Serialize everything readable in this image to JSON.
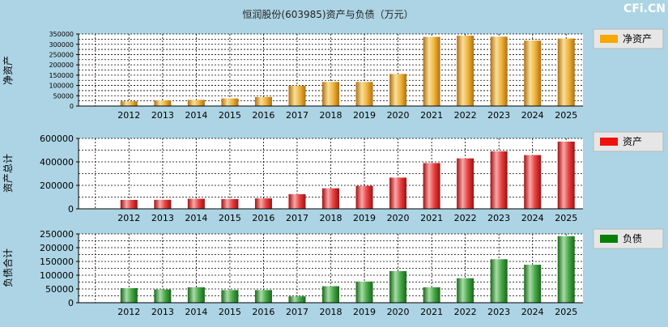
{
  "title": "恒润股份(603985)资产与负债（万元）",
  "watermark": "CFi.CN",
  "chart_data": [
    {
      "type": "bar",
      "ylabel": "净资产",
      "legend": "净资产",
      "legend_position": "top-right",
      "categories": [
        "2012",
        "2013",
        "2014",
        "2015",
        "2016",
        "2017",
        "2018",
        "2019",
        "2020",
        "2021",
        "2022",
        "2023",
        "2024",
        "2025"
      ],
      "values": [
        23000,
        28000,
        30000,
        37000,
        44000,
        99000,
        117000,
        117000,
        156000,
        336000,
        342000,
        337000,
        318000,
        328000
      ],
      "ylim": [
        0,
        350000
      ],
      "yticks": [
        0,
        50000,
        100000,
        150000,
        200000,
        250000,
        300000,
        350000
      ],
      "yticks_minor": [
        0,
        25000,
        50000,
        75000,
        100000,
        125000,
        150000,
        175000,
        200000,
        225000,
        250000,
        275000,
        300000,
        325000,
        350000
      ],
      "color_light": "#f8df9a",
      "color_mid": "#f0b43c",
      "color_dark": "#b07010",
      "legend_color": "#f8a800",
      "grid": true
    },
    {
      "type": "bar",
      "ylabel": "资产总计",
      "legend": "资产",
      "legend_position": "top-right",
      "categories": [
        "2012",
        "2013",
        "2014",
        "2015",
        "2016",
        "2017",
        "2018",
        "2019",
        "2020",
        "2021",
        "2022",
        "2023",
        "2024",
        "2025"
      ],
      "values": [
        76000,
        77000,
        86000,
        83000,
        89000,
        125000,
        175000,
        196000,
        266000,
        390000,
        430000,
        490000,
        458000,
        573000
      ],
      "ylim": [
        0,
        600000
      ],
      "yticks": [
        0,
        200000,
        400000,
        600000
      ],
      "yticks_minor": [
        0,
        100000,
        200000,
        300000,
        400000,
        500000,
        600000
      ],
      "color_light": "#f8a8a8",
      "color_mid": "#e84040",
      "color_dark": "#a01010",
      "legend_color": "#f01010",
      "grid": true
    },
    {
      "type": "bar",
      "ylabel": "负债合计",
      "legend": "负债",
      "legend_position": "top-right",
      "categories": [
        "2012",
        "2013",
        "2014",
        "2015",
        "2016",
        "2017",
        "2018",
        "2019",
        "2020",
        "2021",
        "2022",
        "2023",
        "2024",
        "2025"
      ],
      "values": [
        53000,
        48000,
        56000,
        46000,
        46000,
        23000,
        60000,
        77000,
        115000,
        56000,
        89000,
        158000,
        138000,
        242000
      ],
      "ylim": [
        0,
        250000
      ],
      "yticks": [
        0,
        50000,
        100000,
        150000,
        200000,
        250000
      ],
      "yticks_minor": [
        0,
        25000,
        50000,
        75000,
        100000,
        125000,
        150000,
        175000,
        200000,
        225000,
        250000
      ],
      "color_light": "#a8dca8",
      "color_mid": "#48a848",
      "color_dark": "#186818",
      "legend_color": "#088008",
      "grid": true
    }
  ]
}
